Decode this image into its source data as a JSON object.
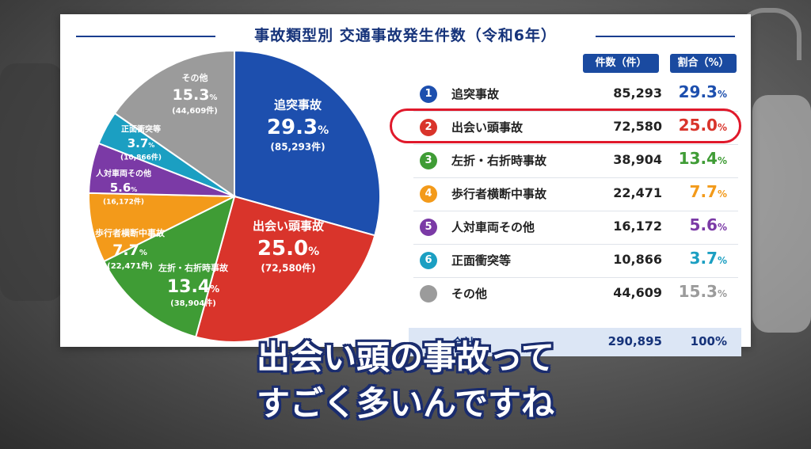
{
  "chart_data": {
    "type": "pie",
    "title": "事故類型別 交通事故発生件数（令和6年）",
    "unit_suffix": "件",
    "slices": [
      {
        "label": "追突事故",
        "value": 85293,
        "count_text": "85,293",
        "percent": 29.3,
        "color": "#1d4fae"
      },
      {
        "label": "出会い頭事故",
        "value": 72580,
        "count_text": "72,580",
        "percent": 25.0,
        "color": "#d9342b"
      },
      {
        "label": "左折・右折時事故",
        "value": 38904,
        "count_text": "38,904",
        "percent": 13.4,
        "color": "#3f9c35"
      },
      {
        "label": "歩行者横断中事故",
        "value": 22471,
        "count_text": "22,471",
        "percent": 7.7,
        "color": "#f39a1a"
      },
      {
        "label": "人対車両その他",
        "value": 16172,
        "count_text": "16,172",
        "percent": 5.6,
        "color": "#7b3aa6"
      },
      {
        "label": "正面衝突等",
        "value": 10866,
        "count_text": "10,866",
        "percent": 3.7,
        "color": "#1b9fc2"
      },
      {
        "label": "その他",
        "value": 44609,
        "count_text": "44,609",
        "percent": 15.3,
        "color": "#9b9b9b"
      }
    ],
    "table": {
      "header_count": "件数（件）",
      "header_ratio": "割合（%）",
      "rows": [
        {
          "num": "1",
          "label": "追突事故",
          "count": "85,293",
          "pct": "29.3",
          "color": "#1d4fae"
        },
        {
          "num": "2",
          "label": "出会い頭事故",
          "count": "72,580",
          "pct": "25.0",
          "color": "#d9342b"
        },
        {
          "num": "3",
          "label": "左折・右折時事故",
          "count": "38,904",
          "pct": "13.4",
          "color": "#3f9c35"
        },
        {
          "num": "4",
          "label": "歩行者横断中事故",
          "count": "22,471",
          "pct": "7.7",
          "color": "#f39a1a"
        },
        {
          "num": "5",
          "label": "人対車両その他",
          "count": "16,172",
          "pct": "5.6",
          "color": "#7b3aa6"
        },
        {
          "num": "6",
          "label": "正面衝突等",
          "count": "10,866",
          "pct": "3.7",
          "color": "#1b9fc2"
        },
        {
          "num": "",
          "label": "その他",
          "count": "44,609",
          "pct": "15.3",
          "color": "#9b9b9b"
        }
      ],
      "total_label": "合計",
      "total_count": "290,895",
      "total_pct": "100%"
    },
    "highlighted_row": "2",
    "highlight_color": "#e0192b"
  },
  "subtitle": {
    "line1": "出会い頭の事故って",
    "line2": "すごく多いんですね"
  }
}
